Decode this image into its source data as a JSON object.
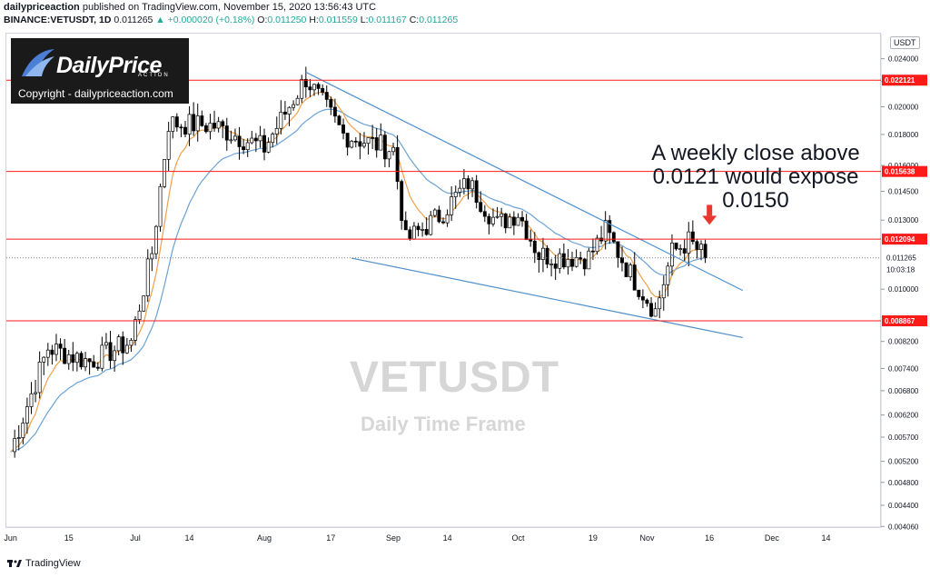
{
  "header": {
    "author": "dailypriceaction",
    "published_text": "published on TradingView.com, November 15, 2020 13:56:43 UTC",
    "symbol": "BINANCE:VETUSDT, 1D",
    "last": "0.011265",
    "change": "▲ +0.000020 (+0.18%)",
    "O_label": "O:",
    "O": "0.011250",
    "H_label": "H:",
    "H": "0.011559",
    "L_label": "L:",
    "L": "0.011167",
    "C_label": "C:",
    "C": "0.011265"
  },
  "logo": {
    "name": "DailyPrice",
    "tagline": "ACTION",
    "copyright": "Copyright - dailypriceaction.com"
  },
  "annotation": "A weekly close above 0.0121 would expose 0.0150",
  "watermark": {
    "symbol": "VETUSDT",
    "timeframe": "Daily Time Frame"
  },
  "footer": {
    "brand": "TradingView"
  },
  "axis": {
    "currency": "USDT"
  },
  "colors": {
    "up_candle": "#ffffff",
    "down_candle": "#000000",
    "ema_fast": "#f0a04b",
    "ema_slow": "#6ba3d6",
    "level_line": "#ff1a1a",
    "trend_line": "#4f8fc9",
    "label_bg": "#ff1a1a",
    "arrow": "#e8372c"
  },
  "chart_data": {
    "type": "candlestick",
    "title": "BINANCE:VETUSDT, 1D",
    "y_scale": "log",
    "ylim": [
      0.00405,
      0.0264
    ],
    "y_ticks": [
      "0.024000",
      "0.022000",
      "0.020000",
      "0.018000",
      "0.016000",
      "0.014500",
      "0.013000",
      "0.010000",
      "0.008200",
      "0.007400",
      "0.006800",
      "0.006200",
      "0.005700",
      "0.005200",
      "0.004800",
      "0.004400",
      "0.004060"
    ],
    "x_ticks": [
      "Jun",
      "15",
      "Jul",
      "14",
      "Aug",
      "17",
      "Sep",
      "14",
      "Oct",
      "19",
      "Nov",
      "16",
      "Dec",
      "14"
    ],
    "x_tick_dates": [
      "2020-06-01",
      "2020-06-15",
      "2020-07-01",
      "2020-07-14",
      "2020-08-01",
      "2020-08-17",
      "2020-09-01",
      "2020-09-14",
      "2020-10-01",
      "2020-10-19",
      "2020-11-01",
      "2020-11-16",
      "2020-12-01",
      "2020-12-14"
    ],
    "x_range": [
      "2020-05-31",
      "2020-12-27"
    ],
    "levels": [
      {
        "value": 0.022121,
        "label": "0.022121"
      },
      {
        "value": 0.015638,
        "label": "0.015638"
      },
      {
        "value": 0.012094,
        "label": "0.012094"
      },
      {
        "value": 0.008867,
        "label": "0.008867"
      }
    ],
    "last_price": {
      "value": 0.011265,
      "label": "0.011265",
      "countdown": "10:03:18"
    },
    "trendlines": [
      {
        "x": [
          "2020-08-11",
          "2020-11-24"
        ],
        "y": [
          0.0228,
          0.00995
        ]
      },
      {
        "x": [
          "2020-08-22",
          "2020-11-24"
        ],
        "y": [
          0.01125,
          0.00832
        ]
      }
    ],
    "key_closes": [
      {
        "date": "2020-06-01",
        "close": 0.0054
      },
      {
        "date": "2020-06-10",
        "close": 0.008
      },
      {
        "date": "2020-06-20",
        "close": 0.0076
      },
      {
        "date": "2020-06-30",
        "close": 0.0082
      },
      {
        "date": "2020-07-05",
        "close": 0.0115
      },
      {
        "date": "2020-07-09",
        "close": 0.0188
      },
      {
        "date": "2020-07-20",
        "close": 0.0186
      },
      {
        "date": "2020-08-01",
        "close": 0.0171
      },
      {
        "date": "2020-08-11",
        "close": 0.0223
      },
      {
        "date": "2020-08-20",
        "close": 0.018
      },
      {
        "date": "2020-09-01",
        "close": 0.017
      },
      {
        "date": "2020-09-04",
        "close": 0.012
      },
      {
        "date": "2020-09-12",
        "close": 0.0132
      },
      {
        "date": "2020-09-19",
        "close": 0.015
      },
      {
        "date": "2020-09-26",
        "close": 0.0128
      },
      {
        "date": "2020-10-01",
        "close": 0.0134
      },
      {
        "date": "2020-10-06",
        "close": 0.0114
      },
      {
        "date": "2020-10-12",
        "close": 0.0113
      },
      {
        "date": "2020-10-18",
        "close": 0.0113
      },
      {
        "date": "2020-10-22",
        "close": 0.0125
      },
      {
        "date": "2020-10-28",
        "close": 0.0106
      },
      {
        "date": "2020-11-03",
        "close": 0.0092
      },
      {
        "date": "2020-11-07",
        "close": 0.0115
      },
      {
        "date": "2020-11-11",
        "close": 0.012
      },
      {
        "date": "2020-11-15",
        "close": 0.011265
      }
    ]
  }
}
